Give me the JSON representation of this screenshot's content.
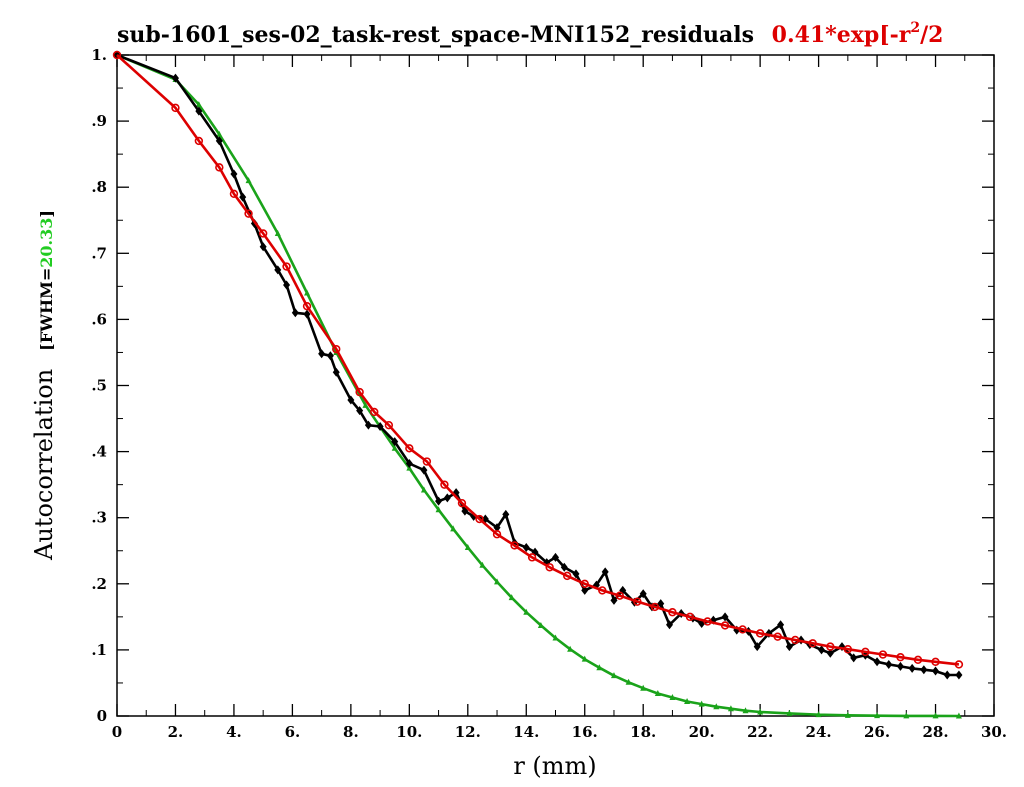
{
  "chart_data": {
    "type": "line",
    "title_prefix": "sub-1601_ses-02_task-rest_space-MNI152_residuals",
    "title_fit_lead": "0.41*exp[-r",
    "title_fit_sup": "2",
    "title_fit_tail": "/2",
    "xlabel": "r (mm)",
    "ylabel": "Autocorrelation",
    "ylabel_fwhm_prefix": "[FWHM=",
    "ylabel_fwhm_value": "20.33",
    "ylabel_fwhm_suffix": "]",
    "xlim": [
      0,
      30
    ],
    "ylim": [
      0,
      1.0
    ],
    "x_ticks": [
      {
        "v": 0,
        "label": "0"
      },
      {
        "v": 2,
        "label": "2."
      },
      {
        "v": 4,
        "label": "4."
      },
      {
        "v": 6,
        "label": "6."
      },
      {
        "v": 8,
        "label": "8."
      },
      {
        "v": 10,
        "label": "10."
      },
      {
        "v": 12,
        "label": "12."
      },
      {
        "v": 14,
        "label": "14."
      },
      {
        "v": 16,
        "label": "16."
      },
      {
        "v": 18,
        "label": "18."
      },
      {
        "v": 20,
        "label": "20."
      },
      {
        "v": 22,
        "label": "22."
      },
      {
        "v": 24,
        "label": "24."
      },
      {
        "v": 26,
        "label": "26."
      },
      {
        "v": 28,
        "label": "28."
      },
      {
        "v": 30,
        "label": "30."
      }
    ],
    "y_ticks": [
      {
        "v": 0,
        "label": "0"
      },
      {
        "v": 0.1,
        "label": ".1"
      },
      {
        "v": 0.2,
        "label": ".2"
      },
      {
        "v": 0.3,
        "label": ".3"
      },
      {
        "v": 0.4,
        "label": ".4"
      },
      {
        "v": 0.5,
        "label": ".5"
      },
      {
        "v": 0.6,
        "label": ".6"
      },
      {
        "v": 0.7,
        "label": ".7"
      },
      {
        "v": 0.8,
        "label": ".8"
      },
      {
        "v": 0.9,
        "label": ".9"
      },
      {
        "v": 1.0,
        "label": "1."
      }
    ],
    "series": [
      {
        "color": "#000000",
        "marker": "diamond",
        "points": [
          [
            0,
            1.0
          ],
          [
            2.0,
            0.965
          ],
          [
            2.8,
            0.915
          ],
          [
            3.5,
            0.87
          ],
          [
            4.0,
            0.82
          ],
          [
            4.3,
            0.785
          ],
          [
            4.7,
            0.745
          ],
          [
            5.0,
            0.71
          ],
          [
            5.5,
            0.675
          ],
          [
            5.8,
            0.652
          ],
          [
            6.1,
            0.61
          ],
          [
            6.5,
            0.608
          ],
          [
            7.0,
            0.548
          ],
          [
            7.3,
            0.545
          ],
          [
            7.5,
            0.52
          ],
          [
            8.0,
            0.478
          ],
          [
            8.3,
            0.462
          ],
          [
            8.6,
            0.44
          ],
          [
            9.0,
            0.438
          ],
          [
            9.5,
            0.415
          ],
          [
            10.0,
            0.382
          ],
          [
            10.5,
            0.372
          ],
          [
            11.0,
            0.325
          ],
          [
            11.3,
            0.33
          ],
          [
            11.6,
            0.338
          ],
          [
            11.9,
            0.31
          ],
          [
            12.2,
            0.302
          ],
          [
            12.6,
            0.298
          ],
          [
            13.0,
            0.285
          ],
          [
            13.3,
            0.305
          ],
          [
            13.6,
            0.262
          ],
          [
            14.0,
            0.255
          ],
          [
            14.3,
            0.248
          ],
          [
            14.7,
            0.232
          ],
          [
            15.0,
            0.24
          ],
          [
            15.3,
            0.225
          ],
          [
            15.7,
            0.215
          ],
          [
            16.0,
            0.19
          ],
          [
            16.4,
            0.198
          ],
          [
            16.7,
            0.218
          ],
          [
            17.0,
            0.175
          ],
          [
            17.3,
            0.19
          ],
          [
            17.7,
            0.172
          ],
          [
            18.0,
            0.185
          ],
          [
            18.3,
            0.165
          ],
          [
            18.6,
            0.17
          ],
          [
            18.9,
            0.138
          ],
          [
            19.3,
            0.155
          ],
          [
            19.7,
            0.148
          ],
          [
            20.0,
            0.14
          ],
          [
            20.4,
            0.145
          ],
          [
            20.8,
            0.15
          ],
          [
            21.2,
            0.13
          ],
          [
            21.6,
            0.128
          ],
          [
            21.9,
            0.105
          ],
          [
            22.3,
            0.125
          ],
          [
            22.7,
            0.138
          ],
          [
            23.0,
            0.105
          ],
          [
            23.4,
            0.115
          ],
          [
            23.7,
            0.108
          ],
          [
            24.1,
            0.1
          ],
          [
            24.4,
            0.095
          ],
          [
            24.8,
            0.105
          ],
          [
            25.2,
            0.088
          ],
          [
            25.6,
            0.092
          ],
          [
            26.0,
            0.082
          ],
          [
            26.4,
            0.078
          ],
          [
            26.8,
            0.075
          ],
          [
            27.2,
            0.072
          ],
          [
            27.6,
            0.07
          ],
          [
            28.0,
            0.068
          ],
          [
            28.4,
            0.062
          ],
          [
            28.8,
            0.062
          ]
        ]
      },
      {
        "color": "#dd0000",
        "marker": "circle",
        "points": [
          [
            0,
            1.0
          ],
          [
            2.0,
            0.92
          ],
          [
            2.8,
            0.87
          ],
          [
            3.5,
            0.83
          ],
          [
            4.0,
            0.79
          ],
          [
            4.5,
            0.76
          ],
          [
            5.0,
            0.73
          ],
          [
            5.8,
            0.68
          ],
          [
            6.5,
            0.62
          ],
          [
            7.5,
            0.555
          ],
          [
            8.3,
            0.49
          ],
          [
            8.8,
            0.46
          ],
          [
            9.3,
            0.44
          ],
          [
            10.0,
            0.405
          ],
          [
            10.6,
            0.385
          ],
          [
            11.2,
            0.35
          ],
          [
            11.8,
            0.322
          ],
          [
            12.4,
            0.298
          ],
          [
            13.0,
            0.275
          ],
          [
            13.6,
            0.258
          ],
          [
            14.2,
            0.24
          ],
          [
            14.8,
            0.225
          ],
          [
            15.4,
            0.212
          ],
          [
            16.0,
            0.2
          ],
          [
            16.6,
            0.19
          ],
          [
            17.2,
            0.182
          ],
          [
            17.8,
            0.173
          ],
          [
            18.4,
            0.165
          ],
          [
            19.0,
            0.157
          ],
          [
            19.6,
            0.15
          ],
          [
            20.2,
            0.143
          ],
          [
            20.8,
            0.137
          ],
          [
            21.4,
            0.131
          ],
          [
            22.0,
            0.125
          ],
          [
            22.6,
            0.12
          ],
          [
            23.2,
            0.115
          ],
          [
            23.8,
            0.11
          ],
          [
            24.4,
            0.105
          ],
          [
            25.0,
            0.101
          ],
          [
            25.6,
            0.097
          ],
          [
            26.2,
            0.093
          ],
          [
            26.8,
            0.089
          ],
          [
            27.4,
            0.085
          ],
          [
            28.0,
            0.082
          ],
          [
            28.8,
            0.078
          ]
        ]
      },
      {
        "color": "#1aa31a",
        "marker": "triangle",
        "points": [
          [
            0,
            1.0
          ],
          [
            2.0,
            0.963
          ],
          [
            2.8,
            0.925
          ],
          [
            3.5,
            0.88
          ],
          [
            4.5,
            0.81
          ],
          [
            5.5,
            0.73
          ],
          [
            6.5,
            0.64
          ],
          [
            7.5,
            0.55
          ],
          [
            8.5,
            0.47
          ],
          [
            9.5,
            0.405
          ],
          [
            10.0,
            0.375
          ],
          [
            10.5,
            0.342
          ],
          [
            11.0,
            0.312
          ],
          [
            11.5,
            0.283
          ],
          [
            12.0,
            0.255
          ],
          [
            12.5,
            0.228
          ],
          [
            13.0,
            0.203
          ],
          [
            13.5,
            0.179
          ],
          [
            14.0,
            0.157
          ],
          [
            14.5,
            0.137
          ],
          [
            15.0,
            0.118
          ],
          [
            15.5,
            0.101
          ],
          [
            16.0,
            0.086
          ],
          [
            16.5,
            0.073
          ],
          [
            17.0,
            0.061
          ],
          [
            17.5,
            0.051
          ],
          [
            18.0,
            0.042
          ],
          [
            18.5,
            0.034
          ],
          [
            19.0,
            0.028
          ],
          [
            19.5,
            0.022
          ],
          [
            20.0,
            0.018
          ],
          [
            20.5,
            0.014
          ],
          [
            21.0,
            0.011
          ],
          [
            21.5,
            0.008
          ],
          [
            22.0,
            0.006
          ],
          [
            23.0,
            0.004
          ],
          [
            24.0,
            0.002
          ],
          [
            25.0,
            0.001
          ],
          [
            26.0,
            0.0005
          ],
          [
            27.0,
            0.0002
          ],
          [
            28.0,
            0.0001
          ],
          [
            28.8,
            0.0
          ]
        ]
      }
    ]
  }
}
